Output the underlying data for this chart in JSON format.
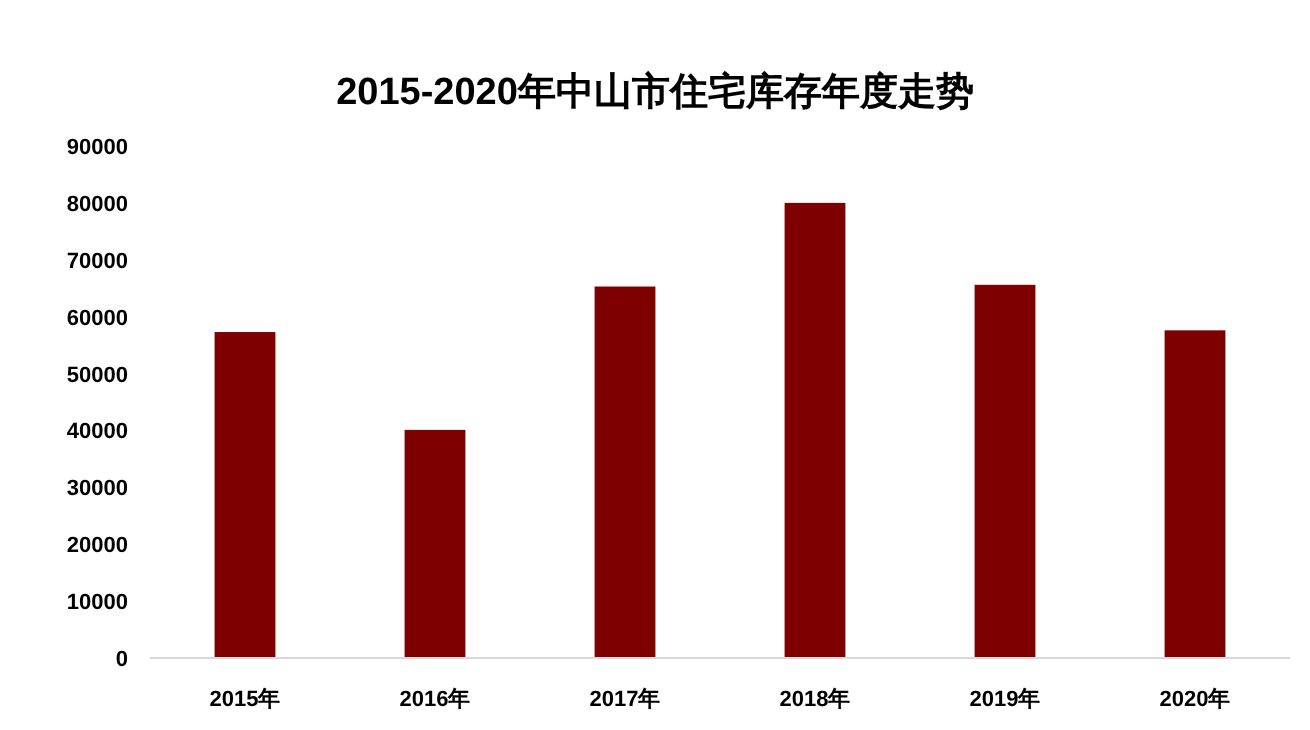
{
  "chart_data": {
    "type": "bar",
    "title": "2015-2020年中山市住宅库存年度走势",
    "categories": [
      "2015年",
      "2016年",
      "2017年",
      "2018年",
      "2019年",
      "2020年"
    ],
    "values": [
      57300,
      40100,
      65300,
      80000,
      65600,
      57600
    ],
    "color": "#7f0000",
    "ylim": [
      0,
      90000
    ],
    "yticks": [
      0,
      10000,
      20000,
      30000,
      40000,
      50000,
      60000,
      70000,
      80000,
      90000
    ],
    "grid": false
  }
}
